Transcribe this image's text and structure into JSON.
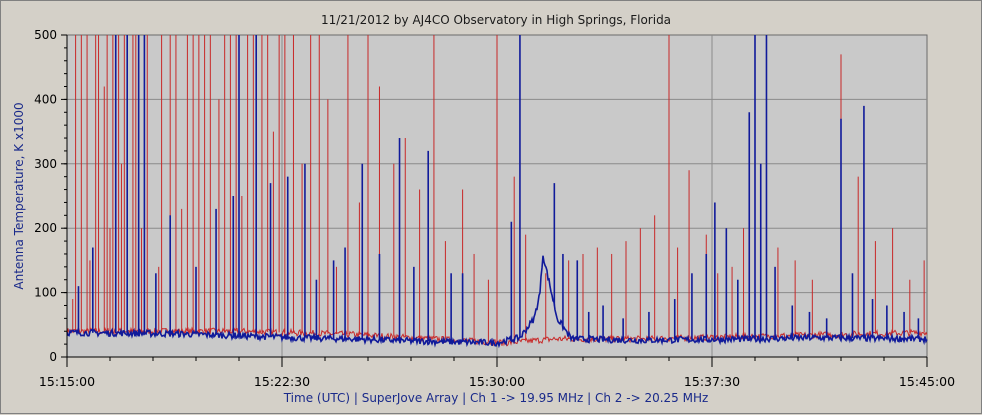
{
  "chart_data": {
    "type": "line",
    "title": "11/21/2012  by  AJ4CO Observatory  in  High Springs, Florida",
    "xlabel": "Time (UTC)  |  SuperJove Array  |  Ch 1 -> 19.95 MHz  |  Ch 2 -> 20.25 MHz",
    "ylabel": "Antenna Temperature, K x1000",
    "ylim": [
      0,
      500
    ],
    "yticks": [
      "0",
      "100",
      "200",
      "300",
      "400",
      "500"
    ],
    "xlim": [
      "15:15:00",
      "15:45:00"
    ],
    "xticks": [
      "15:15:00",
      "15:22:30",
      "15:30:00",
      "15:37:30",
      "15:45:00"
    ],
    "grid": true,
    "colors": {
      "ch1": "#c82828",
      "ch2": "#101a9a",
      "plot_bg": "#c9c9c9",
      "grid": "#8a8a8a"
    },
    "series": [
      {
        "channel": "Ch 1",
        "baseline": [
          [
            0,
            40
          ],
          [
            6,
            40
          ],
          [
            10,
            35
          ],
          [
            14,
            25
          ],
          [
            15.3,
            22
          ],
          [
            17,
            28
          ],
          [
            20,
            28
          ],
          [
            24,
            32
          ],
          [
            30,
            38
          ]
        ],
        "spikes": [
          [
            0.2,
            90
          ],
          [
            0.3,
            500
          ],
          [
            0.5,
            500
          ],
          [
            0.7,
            500
          ],
          [
            0.8,
            150
          ],
          [
            1.0,
            500
          ],
          [
            1.1,
            500
          ],
          [
            1.3,
            420
          ],
          [
            1.4,
            500
          ],
          [
            1.5,
            200
          ],
          [
            1.6,
            500
          ],
          [
            1.8,
            500
          ],
          [
            1.9,
            300
          ],
          [
            2.0,
            500
          ],
          [
            2.3,
            500
          ],
          [
            2.4,
            500
          ],
          [
            2.6,
            200
          ],
          [
            2.8,
            500
          ],
          [
            3.2,
            140
          ],
          [
            3.3,
            500
          ],
          [
            3.6,
            500
          ],
          [
            3.8,
            500
          ],
          [
            4.0,
            230
          ],
          [
            4.2,
            500
          ],
          [
            4.4,
            500
          ],
          [
            4.6,
            500
          ],
          [
            4.8,
            500
          ],
          [
            5.0,
            500
          ],
          [
            5.3,
            400
          ],
          [
            5.5,
            500
          ],
          [
            5.7,
            500
          ],
          [
            5.9,
            500
          ],
          [
            6.1,
            250
          ],
          [
            6.3,
            500
          ],
          [
            6.5,
            500
          ],
          [
            6.8,
            500
          ],
          [
            7.0,
            500
          ],
          [
            7.2,
            350
          ],
          [
            7.4,
            500
          ],
          [
            7.6,
            500
          ],
          [
            7.9,
            500
          ],
          [
            8.2,
            300
          ],
          [
            8.5,
            500
          ],
          [
            8.8,
            500
          ],
          [
            9.1,
            400
          ],
          [
            9.4,
            140
          ],
          [
            9.8,
            500
          ],
          [
            10.2,
            240
          ],
          [
            10.5,
            500
          ],
          [
            10.9,
            420
          ],
          [
            11.4,
            300
          ],
          [
            11.8,
            340
          ],
          [
            12.3,
            260
          ],
          [
            12.8,
            500
          ],
          [
            13.2,
            180
          ],
          [
            13.8,
            260
          ],
          [
            14.2,
            160
          ],
          [
            14.7,
            120
          ],
          [
            15.0,
            500
          ],
          [
            15.6,
            280
          ],
          [
            16.0,
            190
          ],
          [
            16.7,
            130
          ],
          [
            17.5,
            150
          ],
          [
            18.0,
            160
          ],
          [
            18.5,
            170
          ],
          [
            19.0,
            160
          ],
          [
            19.5,
            180
          ],
          [
            20.0,
            200
          ],
          [
            20.5,
            220
          ],
          [
            21.0,
            500
          ],
          [
            21.3,
            170
          ],
          [
            21.7,
            290
          ],
          [
            22.3,
            190
          ],
          [
            22.7,
            130
          ],
          [
            23.2,
            140
          ],
          [
            23.6,
            200
          ],
          [
            24.2,
            170
          ],
          [
            24.8,
            170
          ],
          [
            25.4,
            150
          ],
          [
            26.0,
            120
          ],
          [
            27.0,
            470
          ],
          [
            27.6,
            280
          ],
          [
            28.2,
            180
          ],
          [
            28.8,
            200
          ],
          [
            29.4,
            120
          ],
          [
            29.9,
            150
          ]
        ]
      },
      {
        "channel": "Ch 2",
        "baseline": [
          [
            0,
            38
          ],
          [
            4,
            36
          ],
          [
            8,
            30
          ],
          [
            10,
            28
          ],
          [
            12,
            25
          ],
          [
            15,
            22
          ],
          [
            15.8,
            30
          ],
          [
            16.3,
            60
          ],
          [
            16.5,
            100
          ],
          [
            16.6,
            160
          ],
          [
            16.8,
            120
          ],
          [
            17.1,
            60
          ],
          [
            17.6,
            28
          ],
          [
            20,
            26
          ],
          [
            24,
            28
          ],
          [
            26,
            30
          ],
          [
            30,
            28
          ]
        ],
        "spikes": [
          [
            0.4,
            110
          ],
          [
            0.9,
            170
          ],
          [
            1.7,
            500
          ],
          [
            2.1,
            500
          ],
          [
            2.5,
            500
          ],
          [
            2.7,
            500
          ],
          [
            3.1,
            130
          ],
          [
            3.6,
            220
          ],
          [
            4.5,
            140
          ],
          [
            5.2,
            230
          ],
          [
            5.8,
            250
          ],
          [
            6.0,
            500
          ],
          [
            6.6,
            500
          ],
          [
            7.1,
            270
          ],
          [
            7.7,
            280
          ],
          [
            8.3,
            300
          ],
          [
            8.7,
            120
          ],
          [
            9.3,
            150
          ],
          [
            9.7,
            170
          ],
          [
            10.3,
            300
          ],
          [
            10.9,
            160
          ],
          [
            11.6,
            340
          ],
          [
            12.1,
            140
          ],
          [
            12.6,
            320
          ],
          [
            13.4,
            130
          ],
          [
            13.8,
            130
          ],
          [
            15.5,
            210
          ],
          [
            15.8,
            500
          ],
          [
            17.0,
            270
          ],
          [
            17.3,
            160
          ],
          [
            17.8,
            150
          ],
          [
            18.2,
            70
          ],
          [
            18.7,
            80
          ],
          [
            19.4,
            60
          ],
          [
            20.3,
            70
          ],
          [
            21.2,
            90
          ],
          [
            21.8,
            130
          ],
          [
            22.3,
            160
          ],
          [
            22.6,
            240
          ],
          [
            23.0,
            200
          ],
          [
            23.4,
            120
          ],
          [
            23.8,
            380
          ],
          [
            24.0,
            500
          ],
          [
            24.2,
            300
          ],
          [
            24.4,
            500
          ],
          [
            24.7,
            140
          ],
          [
            25.3,
            80
          ],
          [
            25.9,
            70
          ],
          [
            26.5,
            60
          ],
          [
            27.0,
            370
          ],
          [
            27.4,
            130
          ],
          [
            27.8,
            390
          ],
          [
            28.1,
            90
          ],
          [
            28.6,
            80
          ],
          [
            29.2,
            70
          ],
          [
            29.7,
            60
          ]
        ]
      }
    ]
  }
}
